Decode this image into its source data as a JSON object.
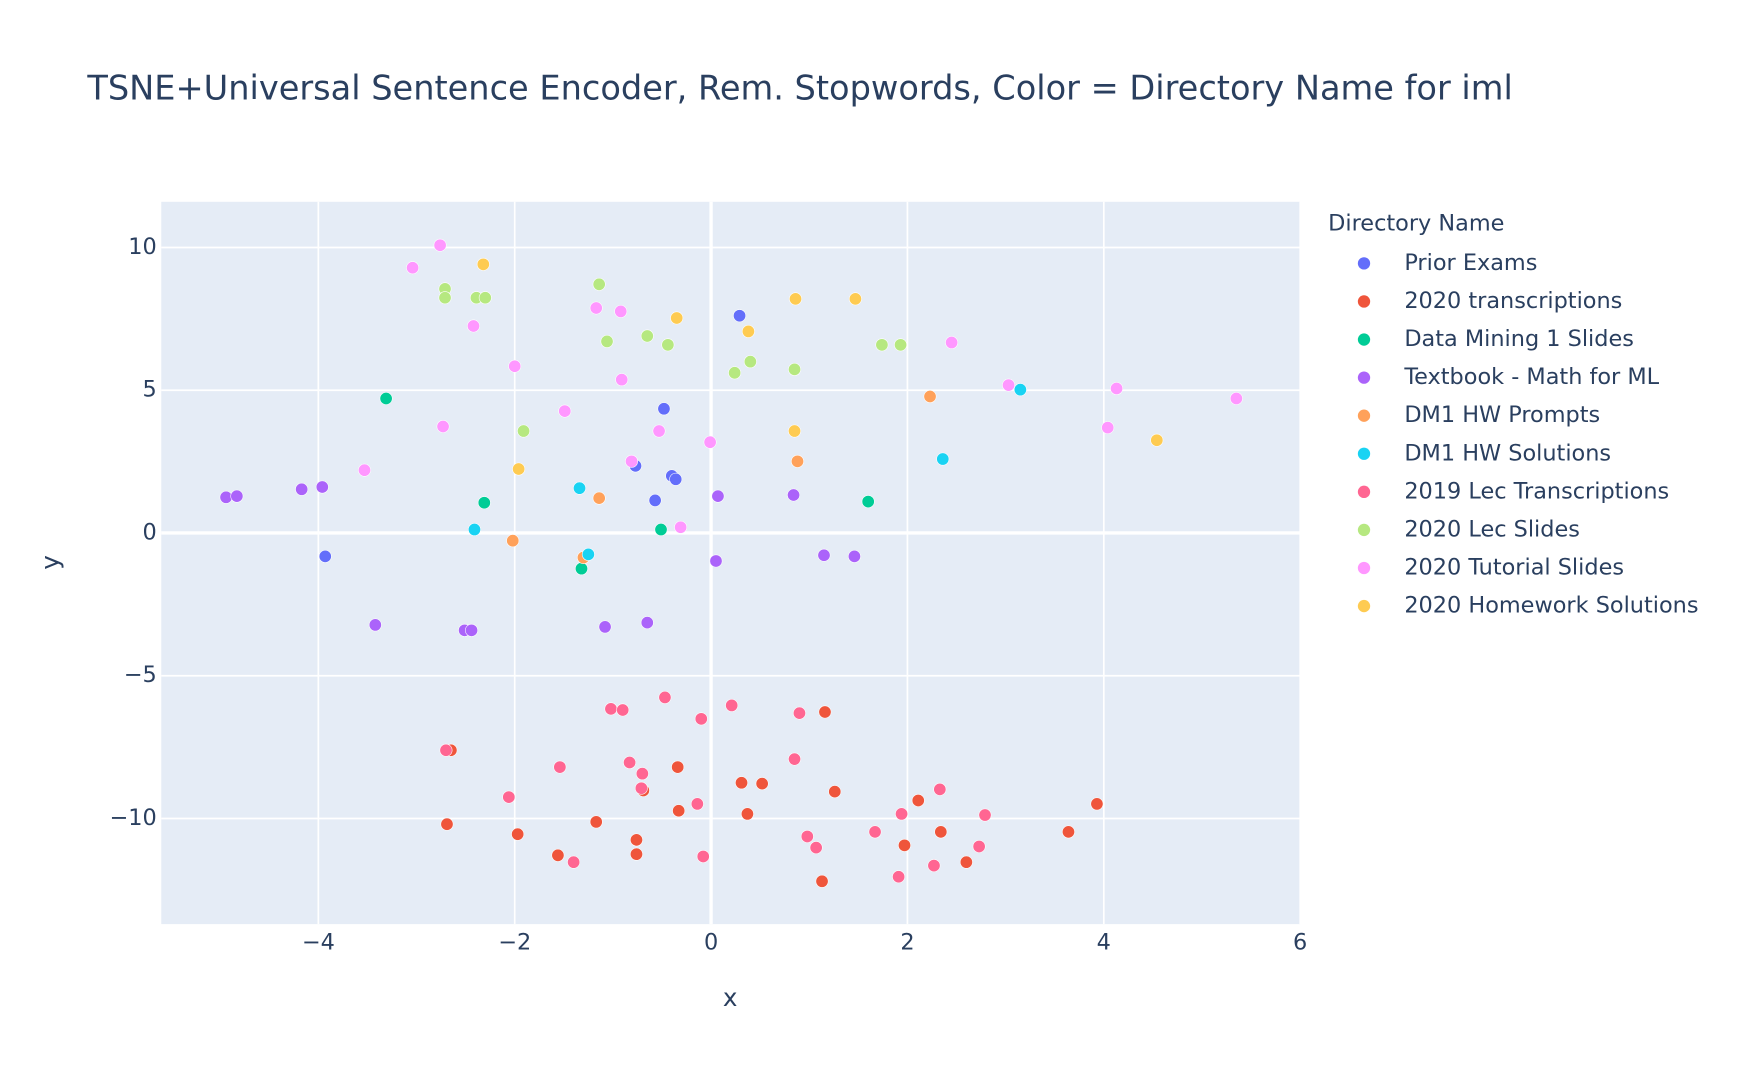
{
  "chart_data": {
    "type": "scatter",
    "title": "TSNE+Universal Sentence Encoder, Rem. Stopwords, Color = Directory Name for iml",
    "x_label": "x",
    "y_label": "y",
    "legend_title": "Directory Name",
    "legend": "right",
    "grid": true,
    "xlim": [
      -5.6,
      6
    ],
    "ylim": [
      -13.7,
      11.6
    ],
    "xticks": [
      {
        "value": -4,
        "label": "−4"
      },
      {
        "value": -2,
        "label": "−2"
      },
      0,
      2,
      4,
      6
    ],
    "yticks": [
      {
        "value": -10,
        "label": "−10"
      },
      {
        "value": -5,
        "label": "−5"
      },
      0,
      5,
      10
    ],
    "series": [
      {
        "name": "Prior Exams",
        "color": "#636efa",
        "x": [
          0.29,
          -0.48,
          -0.77,
          -0.4,
          -0.36,
          -0.57,
          -3.93
        ],
        "values": [
          7.61,
          4.35,
          2.35,
          2.0,
          1.88,
          1.14,
          -0.82
        ]
      },
      {
        "name": "2020 transcriptions",
        "color": "#EF553B",
        "x": [
          1.16,
          -0.34,
          0.31,
          0.52,
          1.26,
          -0.69,
          -0.33,
          0.37,
          2.11,
          3.93,
          -1.17,
          -2.69,
          -1.97,
          -0.76,
          1.97,
          2.34,
          3.64,
          -1.56,
          -0.76,
          2.6,
          1.13,
          -2.65
        ],
        "values": [
          -6.27,
          -8.2,
          -8.75,
          -8.78,
          -9.06,
          -9.02,
          -9.73,
          -9.84,
          -9.37,
          -9.49,
          -10.12,
          -10.2,
          -10.55,
          -10.75,
          -10.94,
          -10.47,
          -10.47,
          -11.29,
          -11.25,
          -11.53,
          -12.2,
          -7.61
        ]
      },
      {
        "name": "Data Mining 1 Slides",
        "color": "#00cc96",
        "x": [
          -3.31,
          -2.31,
          1.6,
          -0.51,
          -1.32
        ],
        "values": [
          4.71,
          1.06,
          1.1,
          0.12,
          -1.25
        ]
      },
      {
        "name": "Textbook - Math for ML",
        "color": "#ab63fa",
        "x": [
          -4.94,
          -4.83,
          -4.17,
          -3.96,
          0.07,
          0.84,
          0.05,
          1.15,
          1.46,
          -3.42,
          -2.51,
          -2.44,
          -1.08,
          -0.65
        ],
        "values": [
          1.25,
          1.29,
          1.53,
          1.61,
          1.29,
          1.33,
          -0.98,
          -0.78,
          -0.82,
          -3.22,
          -3.41,
          -3.41,
          -3.29,
          -3.14
        ]
      },
      {
        "name": "DM1 HW Prompts",
        "color": "#FFA15A",
        "x": [
          2.23,
          0.88,
          -1.14,
          -2.02,
          -1.3
        ],
        "values": [
          4.78,
          2.51,
          1.22,
          -0.27,
          -0.86
        ]
      },
      {
        "name": "DM1 HW Solutions",
        "color": "#19d3f3",
        "x": [
          3.15,
          2.36,
          -1.34,
          -2.41,
          -1.25
        ],
        "values": [
          5.02,
          2.59,
          1.57,
          0.12,
          -0.75
        ]
      },
      {
        "name": "2019 Lec Transcriptions",
        "color": "#FF6692",
        "x": [
          -0.47,
          -1.02,
          -0.9,
          -0.1,
          0.21,
          0.9,
          -2.7,
          -1.54,
          -0.83,
          -0.7,
          0.85,
          -0.71,
          -2.06,
          -0.14,
          2.33,
          1.94,
          2.79,
          0.98,
          1.07,
          1.67,
          2.73,
          -1.4,
          -0.08,
          2.27,
          1.91
        ],
        "values": [
          -5.76,
          -6.16,
          -6.2,
          -6.51,
          -6.04,
          -6.31,
          -7.61,
          -8.2,
          -8.04,
          -8.43,
          -7.92,
          -8.94,
          -9.25,
          -9.49,
          -8.98,
          -9.84,
          -9.88,
          -10.63,
          -11.02,
          -10.47,
          -10.98,
          -11.53,
          -11.33,
          -11.65,
          -12.04
        ]
      },
      {
        "name": "2020 Lec Slides",
        "color": "#B6E880",
        "x": [
          -2.71,
          -2.71,
          -2.39,
          -2.3,
          -1.14,
          -1.06,
          -0.65,
          -0.44,
          0.4,
          0.24,
          0.85,
          1.74,
          1.93,
          -1.91
        ],
        "values": [
          8.55,
          8.24,
          8.24,
          8.24,
          8.71,
          6.71,
          6.9,
          6.59,
          6.0,
          5.61,
          5.73,
          6.59,
          6.59,
          3.57
        ]
      },
      {
        "name": "2020 Tutorial Slides",
        "color": "#FF97FF",
        "x": [
          -2.76,
          -3.04,
          -2.42,
          -1.17,
          -0.92,
          -2.0,
          -0.91,
          -1.49,
          -2.73,
          -3.53,
          -0.53,
          -0.01,
          -0.81,
          -0.31,
          2.45,
          3.03,
          4.13,
          4.04,
          5.35
        ],
        "values": [
          10.08,
          9.29,
          7.25,
          7.88,
          7.76,
          5.84,
          5.37,
          4.27,
          3.73,
          2.2,
          3.57,
          3.18,
          2.51,
          0.2,
          6.67,
          5.18,
          5.06,
          3.69,
          4.71
        ]
      },
      {
        "name": "2020 Homework Solutions",
        "color": "#FECB52",
        "x": [
          -2.32,
          -0.35,
          0.38,
          0.86,
          1.47,
          0.85,
          -1.96,
          4.54
        ],
        "values": [
          9.41,
          7.53,
          7.06,
          8.2,
          8.2,
          3.57,
          2.24,
          3.25
        ]
      }
    ]
  }
}
